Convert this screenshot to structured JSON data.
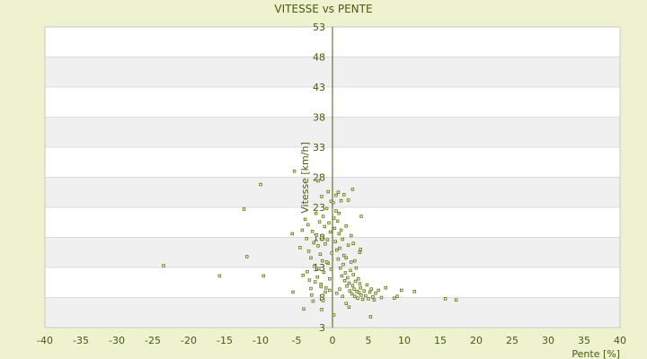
{
  "chart_data": {
    "type": "scatter",
    "title": "VITESSE vs PENTE",
    "xlabel": "Pente [%]",
    "ylabel": "Vitesse [km/h]",
    "xlim": [
      -40,
      40
    ],
    "ylim": [
      3,
      53
    ],
    "xticks": [
      -40,
      -35,
      -30,
      -25,
      -20,
      -15,
      -10,
      -5,
      0,
      5,
      10,
      15,
      20,
      25,
      30,
      35,
      40
    ],
    "yticks": [
      3,
      8,
      13,
      18,
      23,
      28,
      33,
      38,
      43,
      48,
      53
    ],
    "grid": "horizontal-bands",
    "colors": {
      "background": "#eef2cf",
      "band": "#f0f0f0",
      "plot": "#ffffff",
      "marker": "#6b7a1a",
      "axis": "#4a5a10"
    },
    "series": [
      {
        "points": [
          [
            -23.5,
            13.3
          ],
          [
            -15.7,
            11.6
          ],
          [
            -11.9,
            14.8
          ],
          [
            -9.6,
            11.6
          ],
          [
            -12.3,
            22.7
          ],
          [
            -10,
            26.8
          ],
          [
            -5.3,
            29.0
          ],
          [
            -5.6,
            18.6
          ],
          [
            -5.5,
            8.9
          ],
          [
            -4.0,
            6.1
          ],
          [
            -4.1,
            11.7
          ],
          [
            -3.2,
            10.9
          ],
          [
            -3.0,
            9.5
          ],
          [
            -2.7,
            7.4
          ],
          [
            -1.5,
            6.0
          ],
          [
            -1.3,
            7.5
          ],
          [
            -4.5,
            16.3
          ],
          [
            -4.2,
            19.2
          ],
          [
            -3.8,
            21.0
          ],
          [
            -3.6,
            17.8
          ],
          [
            -3.4,
            20.1
          ],
          [
            -3.3,
            15.7
          ],
          [
            -3.0,
            14.6
          ],
          [
            -2.8,
            19.0
          ],
          [
            -2.6,
            17.1
          ],
          [
            -2.5,
            13.2
          ],
          [
            -2.3,
            22.0
          ],
          [
            -2.2,
            18.4
          ],
          [
            -2.0,
            16.6
          ],
          [
            -1.9,
            12.8
          ],
          [
            -1.8,
            20.6
          ],
          [
            -1.7,
            15.2
          ],
          [
            -1.6,
            10.2
          ],
          [
            -1.5,
            18.0
          ],
          [
            -1.4,
            14.1
          ],
          [
            -1.3,
            21.5
          ],
          [
            -1.2,
            12.2
          ],
          [
            -1.1,
            19.8
          ],
          [
            -1.0,
            16.9
          ],
          [
            -0.9,
            9.6
          ],
          [
            -0.8,
            22.8
          ],
          [
            -0.7,
            17.6
          ],
          [
            -0.6,
            13.7
          ],
          [
            -0.5,
            20.4
          ],
          [
            -0.4,
            11.1
          ],
          [
            -0.3,
            18.9
          ],
          [
            -0.2,
            24.0
          ],
          [
            -0.1,
            15.4
          ],
          [
            -3.5,
            12.3
          ],
          [
            -2.9,
            8.4
          ],
          [
            -2.1,
            11.4
          ],
          [
            -1.5,
            24.8
          ],
          [
            -0.6,
            25.6
          ],
          [
            -2.0,
            27.4
          ],
          [
            -1.0,
            8.9
          ],
          [
            -0.4,
            9.2
          ],
          [
            -1.6,
            9.8
          ],
          [
            -2.4,
            10.6
          ],
          [
            -0.8,
            13.9
          ],
          [
            -0.2,
            12.7
          ],
          [
            0.1,
            23.8
          ],
          [
            0.2,
            21.2
          ],
          [
            0.3,
            19.5
          ],
          [
            0.4,
            17.3
          ],
          [
            0.5,
            22.4
          ],
          [
            0.6,
            15.9
          ],
          [
            0.7,
            20.7
          ],
          [
            0.8,
            14.4
          ],
          [
            0.9,
            18.6
          ],
          [
            1.0,
            16.2
          ],
          [
            1.1,
            12.9
          ],
          [
            1.2,
            19.2
          ],
          [
            1.3,
            11.6
          ],
          [
            1.4,
            17.7
          ],
          [
            1.5,
            13.5
          ],
          [
            1.6,
            15.0
          ],
          [
            1.7,
            10.8
          ],
          [
            1.8,
            12.1
          ],
          [
            1.9,
            14.6
          ],
          [
            2.0,
            9.9
          ],
          [
            2.1,
            11.3
          ],
          [
            2.2,
            16.7
          ],
          [
            2.3,
            10.4
          ],
          [
            2.4,
            9.1
          ],
          [
            2.5,
            12.5
          ],
          [
            2.6,
            13.9
          ],
          [
            2.7,
            8.6
          ],
          [
            2.8,
            10.0
          ],
          [
            2.9,
            11.8
          ],
          [
            3.0,
            9.4
          ],
          [
            3.1,
            8.2
          ],
          [
            3.2,
            10.7
          ],
          [
            3.3,
            12.9
          ],
          [
            3.4,
            9.0
          ],
          [
            3.5,
            7.9
          ],
          [
            3.6,
            11.1
          ],
          [
            3.7,
            8.8
          ],
          [
            3.8,
            10.3
          ],
          [
            3.9,
            9.6
          ],
          [
            4.0,
            8.4
          ],
          [
            4.2,
            7.7
          ],
          [
            4.4,
            9.1
          ],
          [
            4.6,
            8.3
          ],
          [
            4.8,
            10.1
          ],
          [
            5.0,
            7.8
          ],
          [
            5.2,
            8.9
          ],
          [
            5.4,
            9.4
          ],
          [
            5.6,
            8.1
          ],
          [
            5.8,
            7.6
          ],
          [
            6.0,
            8.7
          ],
          [
            6.4,
            9.2
          ],
          [
            6.8,
            8.0
          ],
          [
            7.4,
            9.6
          ],
          [
            8.6,
            7.9
          ],
          [
            9.0,
            8.2
          ],
          [
            9.6,
            9.2
          ],
          [
            11.4,
            9.0
          ],
          [
            15.7,
            7.8
          ],
          [
            17.2,
            7.6
          ],
          [
            2.8,
            26.0
          ],
          [
            4.0,
            21.5
          ],
          [
            3.9,
            16.0
          ],
          [
            3.8,
            15.5
          ],
          [
            2.2,
            24.2
          ],
          [
            0.9,
            22.0
          ],
          [
            0.5,
            25.0
          ],
          [
            0.2,
            5.1
          ],
          [
            1.0,
            9.4
          ],
          [
            0.6,
            8.7
          ],
          [
            1.4,
            8.2
          ],
          [
            1.9,
            7.0
          ],
          [
            2.3,
            6.4
          ],
          [
            5.3,
            4.8
          ],
          [
            1.6,
            25.1
          ],
          [
            1.2,
            24.1
          ],
          [
            0.8,
            25.5
          ],
          [
            2.6,
            18.3
          ],
          [
            3.1,
            14.1
          ],
          [
            1.9,
            19.9
          ],
          [
            2.9,
            17.0
          ]
        ]
      }
    ]
  }
}
